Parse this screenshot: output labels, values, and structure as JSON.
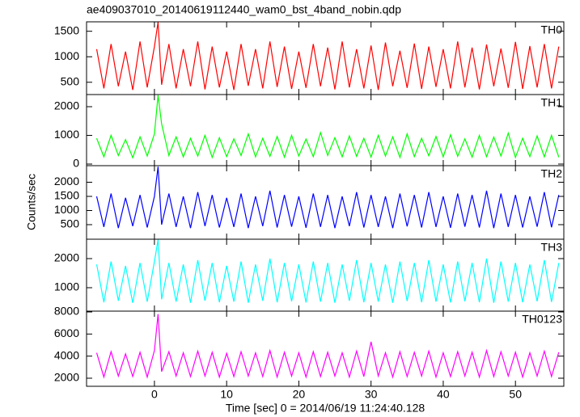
{
  "chart_data": [
    {
      "type": "line",
      "title": "ae409037010_20140619112440_wam0_bst_4band_nobin.qdp",
      "label": "TH0",
      "color": "#ff0000",
      "x": [
        -8,
        -7,
        -6,
        -5,
        -4,
        -3,
        -2,
        -1,
        0,
        0.5,
        1,
        2,
        3,
        4,
        5,
        6,
        7,
        8,
        9,
        10,
        11,
        12,
        13,
        14,
        15,
        16,
        17,
        18,
        19,
        20,
        21,
        22,
        23,
        24,
        25,
        26,
        27,
        28,
        29,
        30,
        31,
        32,
        33,
        34,
        35,
        36,
        37,
        38,
        39,
        40,
        41,
        42,
        43,
        44,
        45,
        46,
        47,
        48,
        49,
        50,
        51,
        52,
        53,
        54,
        55,
        56
      ],
      "values": [
        1150,
        380,
        1250,
        420,
        1100,
        350,
        1300,
        400,
        1200,
        1680,
        450,
        1250,
        380,
        1150,
        420,
        1300,
        360,
        1200,
        400,
        1100,
        350,
        1250,
        430,
        1150,
        380,
        1300,
        410,
        1200,
        370,
        1100,
        390,
        1250,
        420,
        1180,
        360,
        1300,
        400,
        1150,
        380,
        1220,
        350,
        1280,
        420,
        1120,
        390,
        1260,
        370,
        1200,
        410,
        1150,
        380,
        1300,
        400,
        1180,
        360,
        1240,
        420,
        1160,
        390,
        1290,
        370,
        1210,
        400,
        1250,
        380,
        1200
      ],
      "xlim": [
        -9.4,
        56.7
      ],
      "xticks": [
        0,
        10,
        20,
        30,
        40,
        50
      ],
      "ylim": [
        259,
        1685
      ],
      "yticks": [
        500,
        1000,
        1500
      ]
    },
    {
      "type": "line",
      "label": "TH1",
      "color": "#00ff00",
      "x": [
        -8,
        -7,
        -6,
        -5,
        -4,
        -3,
        -2,
        -1,
        0,
        0.5,
        1,
        2,
        3,
        4,
        5,
        6,
        7,
        8,
        9,
        10,
        11,
        12,
        13,
        14,
        15,
        16,
        17,
        18,
        19,
        20,
        21,
        22,
        23,
        24,
        25,
        26,
        27,
        28,
        29,
        30,
        31,
        32,
        33,
        34,
        35,
        36,
        37,
        38,
        39,
        40,
        41,
        42,
        43,
        44,
        45,
        46,
        47,
        48,
        49,
        50,
        51,
        52,
        53,
        54,
        55,
        56
      ],
      "values": [
        900,
        250,
        1000,
        300,
        850,
        220,
        950,
        280,
        1050,
        2400,
        1400,
        300,
        950,
        250,
        900,
        280,
        1000,
        230,
        920,
        260,
        880,
        300,
        1050,
        250,
        900,
        270,
        960,
        240,
        1000,
        280,
        870,
        260,
        1100,
        300,
        920,
        250,
        980,
        270,
        900,
        240,
        1000,
        280,
        950,
        230,
        1050,
        260,
        900,
        290,
        960,
        250,
        1020,
        270,
        880,
        240,
        1000,
        260,
        940,
        280,
        1080,
        230,
        900,
        260,
        980,
        250,
        1000,
        240
      ],
      "xlim": [
        -9.4,
        56.7
      ],
      "xticks": [
        0,
        10,
        20,
        30,
        40,
        50
      ],
      "ylim": [
        -56,
        2423
      ],
      "yticks": [
        0,
        1000,
        2000
      ]
    },
    {
      "type": "line",
      "label": "TH2",
      "color": "#0000ff",
      "ylabel": "Counts/sec",
      "x": [
        -8,
        -7,
        -6,
        -5,
        -4,
        -3,
        -2,
        -1,
        0,
        0.5,
        1,
        2,
        3,
        4,
        5,
        6,
        7,
        8,
        9,
        10,
        11,
        12,
        13,
        14,
        15,
        16,
        17,
        18,
        19,
        20,
        21,
        22,
        23,
        24,
        25,
        26,
        27,
        28,
        29,
        30,
        31,
        32,
        33,
        34,
        35,
        36,
        37,
        38,
        39,
        40,
        41,
        42,
        43,
        44,
        45,
        46,
        47,
        48,
        49,
        50,
        51,
        52,
        53,
        54,
        55,
        56
      ],
      "values": [
        1500,
        420,
        1600,
        380,
        1450,
        450,
        1550,
        400,
        1500,
        2550,
        500,
        1600,
        420,
        1500,
        380,
        1650,
        450,
        1550,
        400,
        1450,
        420,
        1600,
        380,
        1500,
        450,
        1700,
        400,
        1550,
        430,
        1500,
        390,
        1600,
        420,
        1550,
        380,
        1500,
        450,
        1650,
        400,
        1550,
        420,
        1500,
        380,
        1600,
        440,
        1550,
        400,
        1650,
        420,
        1500,
        390,
        1600,
        430,
        1550,
        400,
        1700,
        380,
        1600,
        420,
        1550,
        400,
        1500,
        430,
        1650,
        410,
        1550
      ],
      "xlim": [
        -9.4,
        56.7
      ],
      "xticks": [
        0,
        10,
        20,
        30,
        40,
        50
      ],
      "ylim": [
        -14,
        2586
      ],
      "yticks": [
        500,
        1000,
        1500,
        2000
      ]
    },
    {
      "type": "line",
      "label": "TH3",
      "color": "#00ffff",
      "x": [
        -8,
        -7,
        -6,
        -5,
        -4,
        -3,
        -2,
        -1,
        0,
        0.5,
        1,
        2,
        3,
        4,
        5,
        6,
        7,
        8,
        9,
        10,
        11,
        12,
        13,
        14,
        15,
        16,
        17,
        18,
        19,
        20,
        21,
        22,
        23,
        24,
        25,
        26,
        27,
        28,
        29,
        30,
        31,
        32,
        33,
        34,
        35,
        36,
        37,
        38,
        39,
        40,
        41,
        42,
        43,
        44,
        45,
        46,
        47,
        48,
        49,
        50,
        51,
        52,
        53,
        54,
        55,
        56
      ],
      "values": [
        1800,
        500,
        1900,
        550,
        1750,
        480,
        1850,
        520,
        1900,
        2650,
        600,
        1850,
        520,
        1800,
        480,
        1950,
        550,
        1850,
        500,
        1750,
        520,
        1900,
        480,
        1800,
        550,
        2000,
        500,
        1850,
        530,
        1800,
        490,
        1900,
        520,
        1850,
        480,
        1800,
        550,
        1950,
        500,
        1850,
        520,
        1800,
        480,
        1900,
        540,
        1850,
        500,
        1950,
        520,
        1800,
        490,
        1900,
        530,
        1850,
        500,
        2000,
        480,
        1900,
        520,
        1850,
        500,
        1800,
        530,
        1950,
        510,
        1850
      ],
      "xlim": [
        -9.4,
        56.7
      ],
      "xticks": [
        0,
        10,
        20,
        30,
        40,
        50
      ],
      "ylim": [
        194,
        2667
      ],
      "yticks": [
        1000,
        2000
      ]
    },
    {
      "type": "line",
      "label": "TH0123",
      "color": "#ff00ff",
      "xlabel": "Time [sec] 0 = 2014/06/19 11:24:40.128",
      "x": [
        -8,
        -7,
        -6,
        -5,
        -4,
        -3,
        -2,
        -1,
        0,
        0.5,
        1,
        2,
        3,
        4,
        5,
        6,
        7,
        8,
        9,
        10,
        11,
        12,
        13,
        14,
        15,
        16,
        17,
        18,
        19,
        20,
        21,
        22,
        23,
        24,
        25,
        26,
        27,
        28,
        29,
        30,
        31,
        32,
        33,
        34,
        35,
        36,
        37,
        38,
        39,
        40,
        41,
        42,
        43,
        44,
        45,
        46,
        47,
        48,
        49,
        50,
        51,
        52,
        53,
        54,
        55,
        56
      ],
      "values": [
        4300,
        2100,
        4400,
        2200,
        4200,
        2150,
        4350,
        2100,
        4500,
        7800,
        2600,
        4400,
        2200,
        4300,
        2150,
        4450,
        2200,
        4350,
        2100,
        4250,
        2150,
        4400,
        2200,
        4300,
        2150,
        4500,
        2100,
        4350,
        2200,
        4300,
        2100,
        4400,
        2150,
        4350,
        2200,
        4300,
        2100,
        4450,
        2150,
        5300,
        2200,
        4300,
        2100,
        4400,
        2150,
        4350,
        2200,
        4450,
        2100,
        4300,
        2150,
        4400,
        2200,
        4350,
        2100,
        4500,
        2150,
        4400,
        2200,
        4350,
        2100,
        4300,
        2200,
        4450,
        2150,
        4350
      ],
      "xlim": [
        -9.4,
        56.7
      ],
      "xticks": [
        0,
        10,
        20,
        30,
        40,
        50
      ],
      "ylim": [
        1268,
        8073
      ],
      "yticks": [
        2000,
        4000,
        6000,
        8000
      ]
    }
  ]
}
